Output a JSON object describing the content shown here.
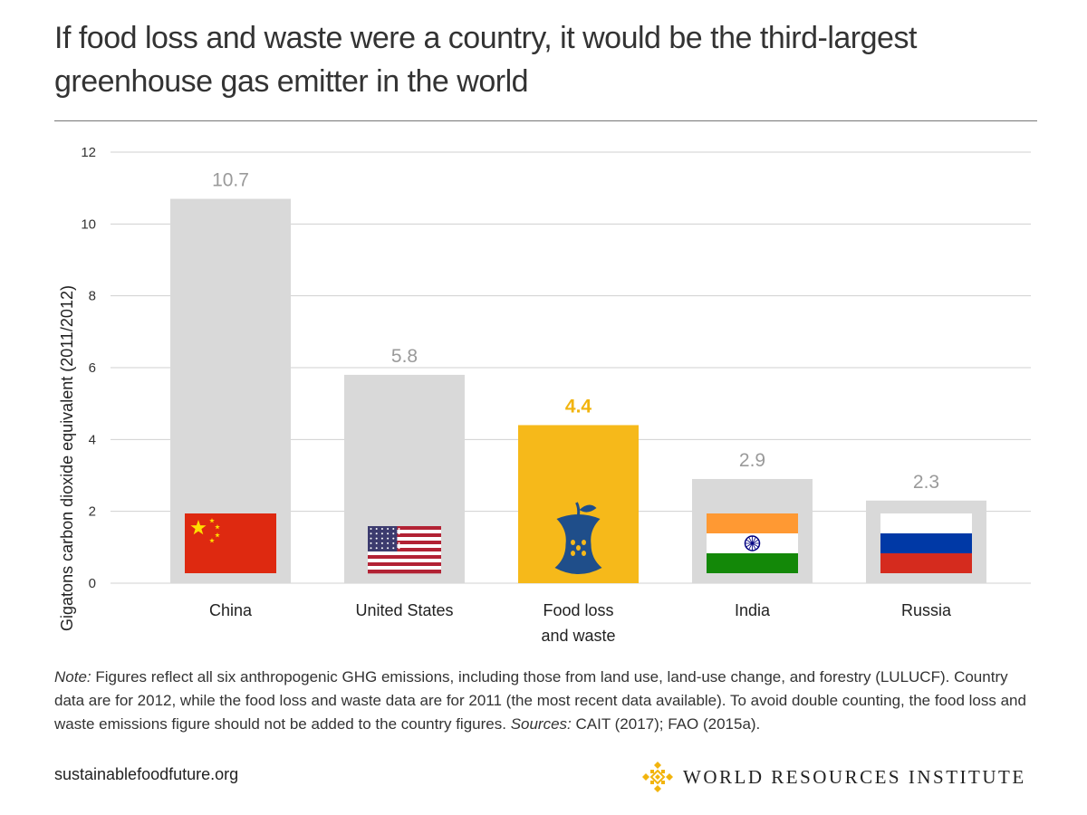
{
  "title": "If food loss and waste were a country, it would be the third-largest greenhouse gas emitter in the world",
  "chart_data": {
    "type": "bar",
    "categories": [
      "China",
      "United States",
      "Food loss and waste",
      "India",
      "Russia"
    ],
    "category_lines": [
      [
        "China"
      ],
      [
        "United States"
      ],
      [
        "Food loss",
        "and waste"
      ],
      [
        "India"
      ],
      [
        "Russia"
      ]
    ],
    "values": [
      10.7,
      5.8,
      4.4,
      2.9,
      2.3
    ],
    "value_labels": [
      "10.7",
      "5.8",
      "4.4",
      "2.9",
      "2.3"
    ],
    "highlight_index": 2,
    "ylabel": "Gigatons carbon dioxide equivalent (2011/2012)",
    "xlabel": "",
    "ylim": [
      0,
      12
    ],
    "yticks": [
      0,
      2,
      4,
      6,
      8,
      10,
      12
    ],
    "icons": [
      "china-flag-icon",
      "us-flag-icon",
      "apple-core-icon",
      "india-flag-icon",
      "russia-flag-icon"
    ],
    "colors": {
      "bar": "#d9d9d9",
      "highlight": "#f6b91a",
      "highlight_label": "#f2b40d",
      "grid": "#d0d0d0",
      "value_label": "#9a9a9a"
    }
  },
  "note": {
    "label": "Note:",
    "text": " Figures reflect all six anthropogenic GHG emissions, including those from land use, land-use change, and forestry (LULUCF). Country data are for 2012, while the food loss and waste data are for 2011 (the most recent data available). To avoid double counting, the food loss and waste emissions figure should not be added to the country figures. ",
    "sources_label": "Sources:",
    "sources_text": " CAIT (2017); FAO (2015a)."
  },
  "footer": {
    "url": "sustainablefoodfuture.org",
    "org": "WORLD RESOURCES INSTITUTE",
    "logo_icon": "wri-logo-icon"
  }
}
